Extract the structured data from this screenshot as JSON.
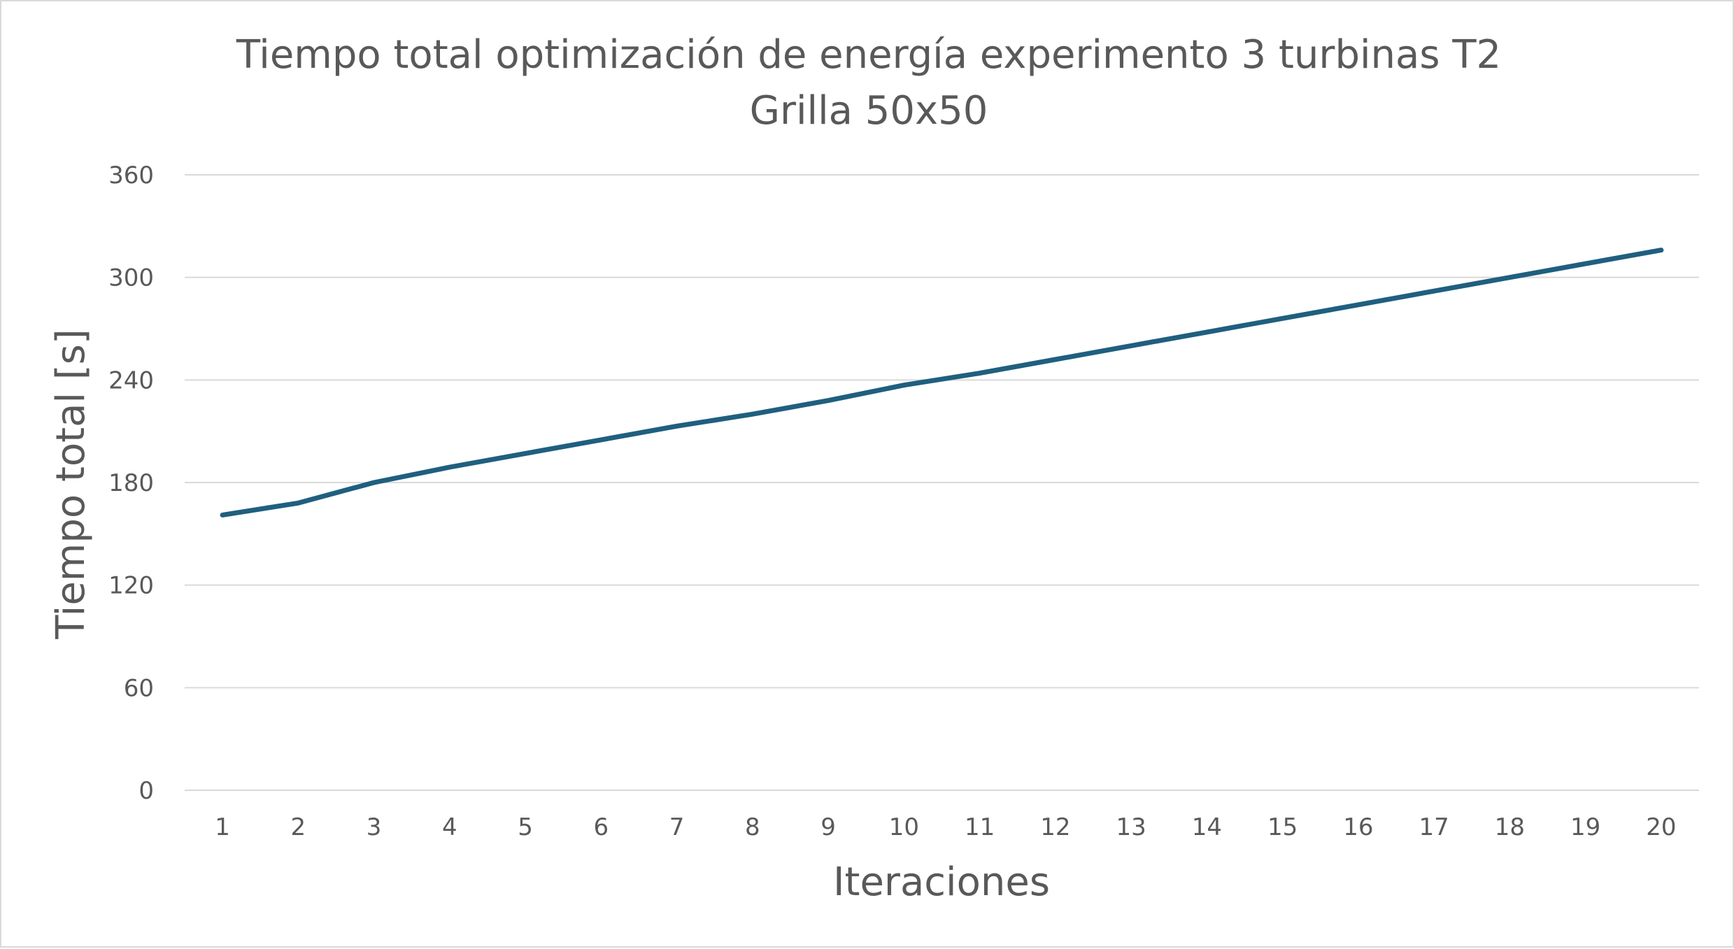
{
  "chart_data": {
    "type": "line",
    "title": "Tiempo total optimización de energía experimento 3 turbinas T2",
    "subtitle": "Grilla 50x50",
    "xlabel": "Iteraciones",
    "ylabel": "Tiempo total [s]",
    "ylim": [
      0,
      360
    ],
    "yticks": [
      0,
      60,
      120,
      180,
      240,
      300,
      360
    ],
    "categories": [
      "1",
      "2",
      "3",
      "4",
      "5",
      "6",
      "7",
      "8",
      "9",
      "10",
      "11",
      "12",
      "13",
      "14",
      "15",
      "16",
      "17",
      "18",
      "19",
      "20"
    ],
    "series": [
      {
        "color": "#1f5f7f",
        "values": [
          161,
          168,
          180,
          189,
          197,
          205,
          213,
          220,
          228,
          237,
          244,
          252,
          260,
          268,
          276,
          284,
          292,
          300,
          308,
          316
        ]
      }
    ],
    "grid": true,
    "legend": "none"
  }
}
